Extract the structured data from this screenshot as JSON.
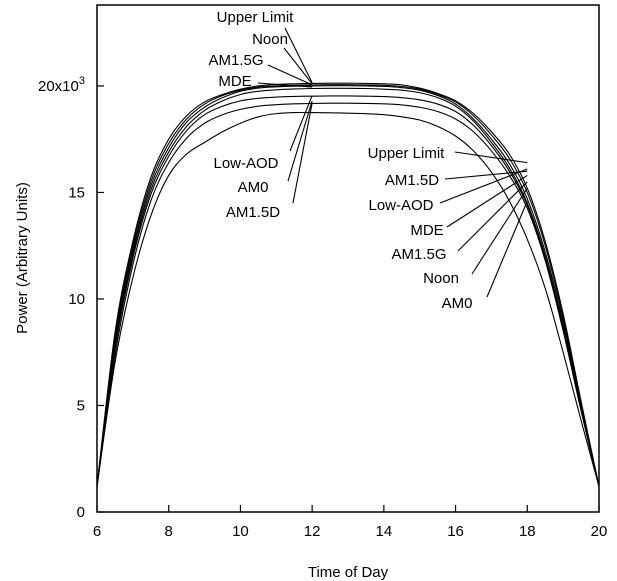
{
  "chart_data": {
    "type": "line",
    "title": "",
    "xlabel": "Time of Day",
    "ylabel": "Power (Arbitrary Units)",
    "xlim": [
      6,
      20
    ],
    "ylim": [
      0,
      23800
    ],
    "x_ticks": [
      6,
      8,
      10,
      12,
      14,
      16,
      18,
      20
    ],
    "x_tick_labels": [
      "6",
      "8",
      "10",
      "12",
      "14",
      "16",
      "18",
      "20"
    ],
    "y_ticks": [
      0,
      5000,
      10000,
      15000,
      20000
    ],
    "y_tick_labels": [
      "0",
      "5",
      "10",
      "15",
      ""
    ],
    "y_top_tick_label": {
      "mantissa": "20x10",
      "exponent": "3"
    },
    "grid": false,
    "x": [
      6,
      6.5,
      7,
      7.5,
      8,
      8.5,
      9,
      9.5,
      10,
      10.5,
      11,
      11.5,
      12,
      12.5,
      13,
      13.5,
      14,
      14.5,
      15,
      15.5,
      16,
      16.5,
      17,
      17.5,
      18,
      18.5,
      19,
      19.5,
      20
    ],
    "series": [
      {
        "name": "Upper Limit",
        "values": [
          1200,
          8400,
          12700,
          15700,
          17500,
          18600,
          19250,
          19600,
          19850,
          20000,
          20070,
          20100,
          20120,
          20130,
          20130,
          20120,
          20100,
          20050,
          19900,
          19650,
          19300,
          18700,
          17850,
          16800,
          15200,
          12700,
          9300,
          5200,
          1200
        ]
      },
      {
        "name": "Noon",
        "values": [
          1200,
          8200,
          12500,
          15500,
          17300,
          18450,
          19150,
          19550,
          19800,
          19950,
          20000,
          20030,
          20050,
          20060,
          20060,
          20050,
          20030,
          19980,
          19850,
          19600,
          19250,
          18600,
          17700,
          16600,
          15000,
          12500,
          9100,
          5100,
          1200
        ]
      },
      {
        "name": "AM1.5G",
        "values": [
          1200,
          8000,
          12300,
          15300,
          17100,
          18300,
          19000,
          19450,
          19750,
          19900,
          19960,
          19990,
          20000,
          20010,
          20010,
          20000,
          19980,
          19920,
          19800,
          19550,
          19150,
          18450,
          17500,
          16350,
          14700,
          12200,
          8900,
          5000,
          1200
        ]
      },
      {
        "name": "MDE",
        "values": [
          1200,
          7800,
          12100,
          15100,
          16900,
          18100,
          18850,
          19300,
          19600,
          19750,
          19820,
          19860,
          19880,
          19890,
          19890,
          19880,
          19850,
          19800,
          19680,
          19450,
          19050,
          18350,
          17350,
          16150,
          14500,
          12000,
          8700,
          4900,
          1200
        ]
      },
      {
        "name": "Low-AOD",
        "values": [
          1200,
          7600,
          11900,
          14900,
          16700,
          17900,
          18650,
          19050,
          19300,
          19420,
          19480,
          19510,
          19520,
          19530,
          19530,
          19520,
          19500,
          19450,
          19350,
          19150,
          18800,
          18150,
          17200,
          16000,
          14400,
          11900,
          8600,
          4800,
          1200
        ]
      },
      {
        "name": "AM1.5D",
        "values": [
          1200,
          7300,
          11600,
          14600,
          16400,
          17550,
          18250,
          18650,
          18900,
          19050,
          19120,
          19160,
          19180,
          19190,
          19190,
          19180,
          19160,
          19110,
          19000,
          18800,
          18450,
          17850,
          16950,
          15800,
          14250,
          11800,
          8500,
          4750,
          1200
        ]
      },
      {
        "name": "AM0",
        "values": [
          1200,
          7000,
          11000,
          13900,
          15800,
          16800,
          17350,
          17850,
          18250,
          18550,
          18700,
          18750,
          18750,
          18740,
          18720,
          18700,
          18650,
          18550,
          18400,
          18100,
          17650,
          16950,
          15950,
          14600,
          12800,
          10500,
          7500,
          4300,
          1200
        ]
      }
    ],
    "annotations": [
      {
        "text": "Upper Limit",
        "x": 12,
        "y": 20150
      },
      {
        "text": "Noon",
        "x": 12,
        "y": 20100
      },
      {
        "text": "AM1.5G",
        "x": 12,
        "y": 20050
      },
      {
        "text": "MDE",
        "x": 12,
        "y": 19950
      },
      {
        "text": "Low-AOD",
        "x": 12,
        "y": 19550
      },
      {
        "text": "AM0",
        "x": 12,
        "y": 19300
      },
      {
        "text": "AM1.5D",
        "x": 12,
        "y": 19200
      },
      {
        "text": "Upper Limit",
        "x": 18,
        "y": 16400
      },
      {
        "text": "AM1.5D",
        "x": 18,
        "y": 16000
      },
      {
        "text": "Low-AOD",
        "x": 18,
        "y": 16100
      },
      {
        "text": "MDE",
        "x": 18,
        "y": 15800
      },
      {
        "text": "AM1.5G",
        "x": 18,
        "y": 15500
      },
      {
        "text": "Noon",
        "x": 18,
        "y": 15200
      },
      {
        "text": "AM0",
        "x": 18,
        "y": 14600
      }
    ]
  }
}
